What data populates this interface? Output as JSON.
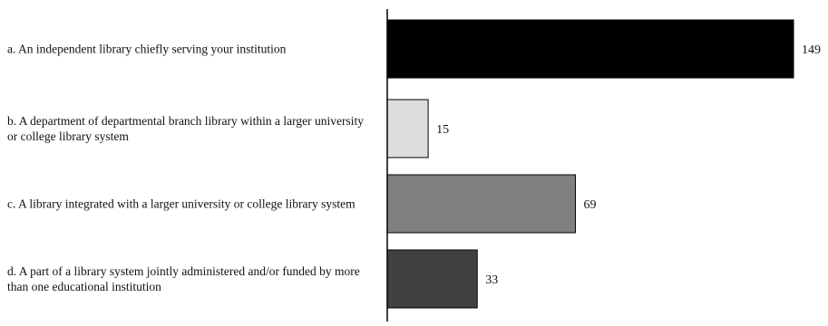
{
  "chart_data": {
    "type": "bar",
    "orientation": "horizontal",
    "categories": [
      "a.  An independent library chiefly serving your institution",
      "b.  A department of departmental branch library within a larger university or college library system",
      "c. A library integrated with a larger university or college library system",
      "d.  A part of a library system jointly administered and/or funded by more than one educational institution"
    ],
    "values": [
      149,
      15,
      69,
      33
    ],
    "data_labels": [
      "149",
      "15",
      "69",
      "33"
    ],
    "colors": [
      "#000000",
      "#dddddd",
      "#808080",
      "#404040"
    ],
    "title": "",
    "xlabel": "",
    "ylabel": "",
    "xlim": [
      0,
      150
    ],
    "grid": false,
    "legend": "none"
  }
}
